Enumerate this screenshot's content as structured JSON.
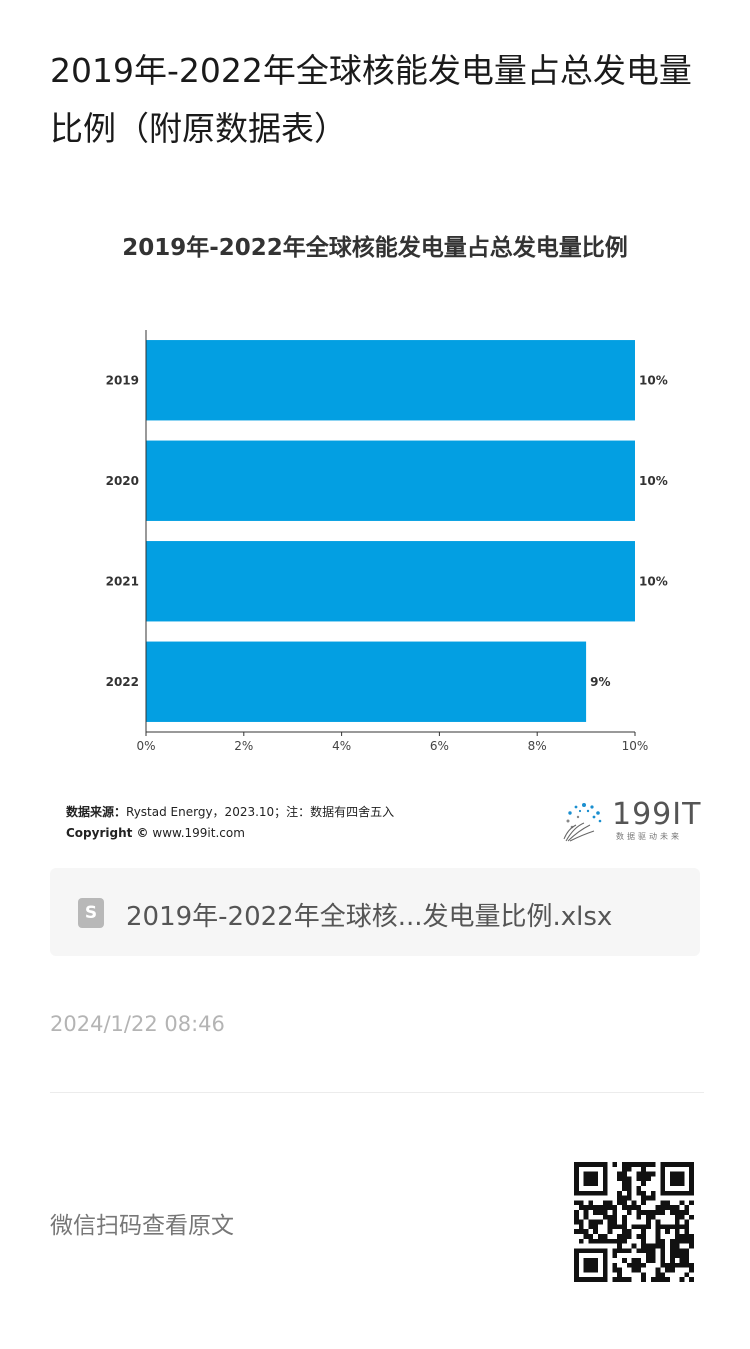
{
  "page": {
    "title": "2019年-2022年全球核能发电量占总发电量比例（附原数据表）"
  },
  "chart_data": {
    "type": "bar",
    "orientation": "horizontal",
    "title": "2019年-2022年全球核能发电量占总发电量比例",
    "categories": [
      "2019",
      "2020",
      "2021",
      "2022"
    ],
    "values": [
      10,
      10,
      10,
      9
    ],
    "data_labels": [
      "10%",
      "10%",
      "10%",
      "9%"
    ],
    "x_ticks": [
      "0%",
      "2%",
      "4%",
      "6%",
      "8%",
      "10%"
    ],
    "xlim": [
      0,
      10
    ],
    "bar_color": "#039fe2",
    "grid": false,
    "legend": "none"
  },
  "source": {
    "label": "数据来源：",
    "text": "Rystad Energy，2023.10；注：数据有四舍五入",
    "copyright_label": "Copyright ©",
    "copyright_text": "www.199it.com"
  },
  "logo": {
    "text": "199IT",
    "tagline": "数据驱动未来"
  },
  "attachment": {
    "icon": "spreadsheet-icon",
    "icon_glyph": "S",
    "file_name": "2019年-2022年全球核...发电量比例.xlsx"
  },
  "meta": {
    "timestamp": "2024/1/22 08:46"
  },
  "footer": {
    "qr_caption": "微信扫码查看原文"
  }
}
